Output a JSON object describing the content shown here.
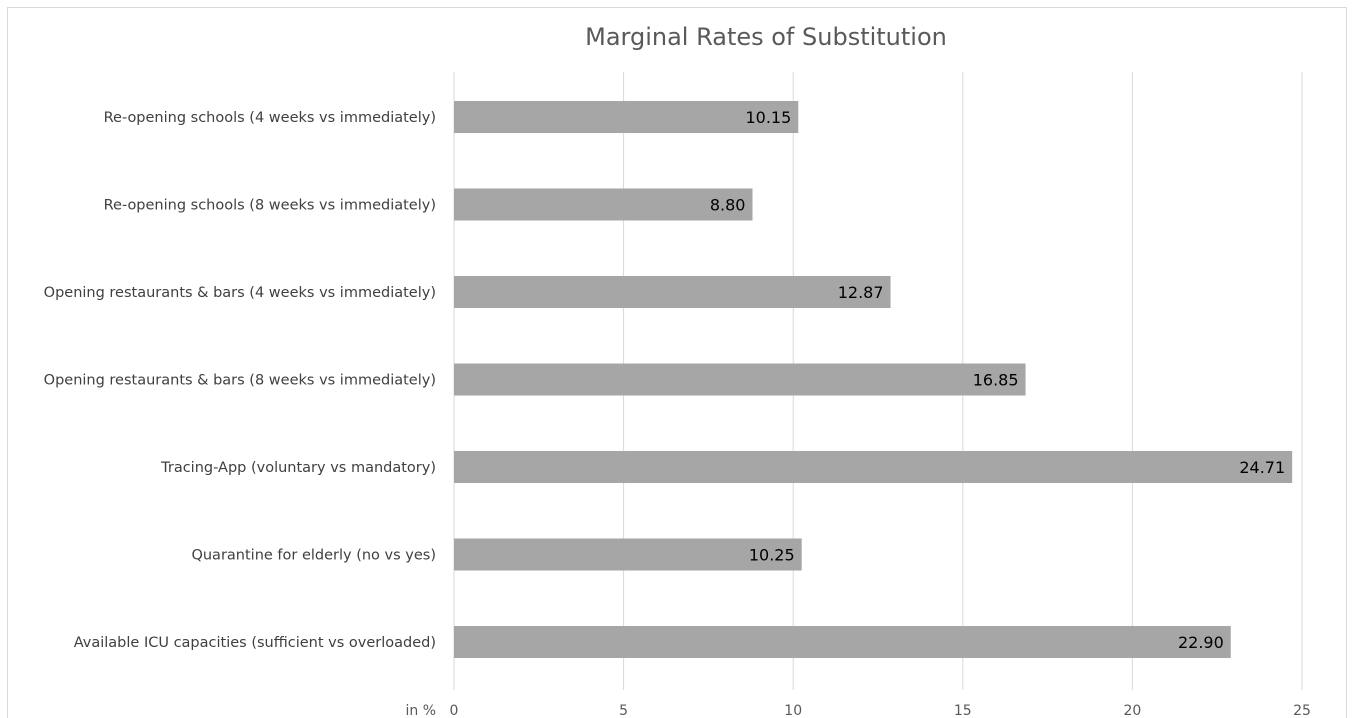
{
  "chart_data": {
    "type": "bar",
    "orientation": "horizontal",
    "title": "Marginal Rates of Substitution",
    "xlabel": "in %",
    "ylabel": "",
    "categories": [
      "Re-opening schools (4 weeks vs immediately)",
      "Re-opening schools (8 weeks vs immediately)",
      "Opening restaurants & bars (4 weeks vs immediately)",
      "Opening restaurants & bars (8 weeks vs immediately)",
      "Tracing-App (voluntary vs mandatory)",
      "Quarantine for elderly (no vs yes)",
      "Available ICU capacities (sufficient vs overloaded)"
    ],
    "values": [
      10.15,
      8.8,
      12.87,
      16.85,
      24.71,
      10.25,
      22.9
    ],
    "data_labels": [
      "10.15",
      "8.80",
      "12.87",
      "16.85",
      "24.71",
      "10.25",
      "22.90"
    ],
    "xlim": [
      0,
      25
    ],
    "xticks": [
      0,
      5,
      10,
      15,
      20,
      25
    ],
    "xtick_labels": [
      "0",
      "5",
      "10",
      "15",
      "20",
      "25"
    ],
    "grid": true,
    "legend": "none",
    "bar_color": "#a6a6a6",
    "gridline_color": "#d9d9d9"
  }
}
